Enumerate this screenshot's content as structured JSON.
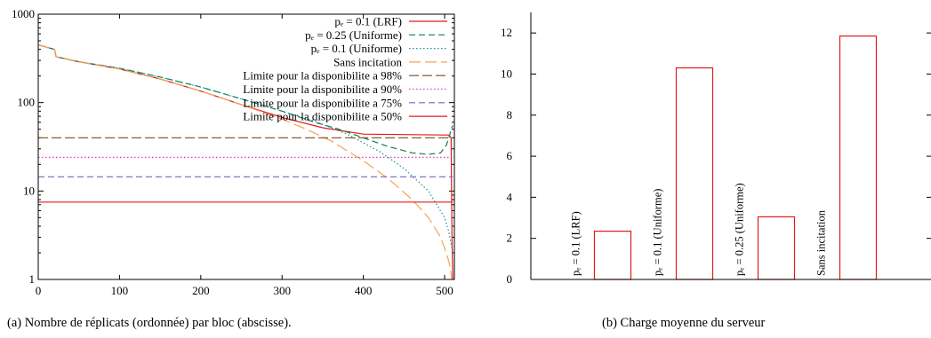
{
  "captions": {
    "left": "(a)  Nombre de réplicats (ordonnée) par bloc (abscisse).",
    "right": "(b)  Charge moyenne du serveur"
  },
  "chart_data": [
    {
      "type": "line",
      "title": "",
      "xlabel": "",
      "ylabel": "",
      "xlim": [
        0,
        512
      ],
      "ylim": [
        1,
        1000
      ],
      "yscale": "log",
      "grid": false,
      "legend_position": "top-right",
      "x_ticks": [
        "0",
        "100",
        "200",
        "300",
        "400",
        "500"
      ],
      "y_ticks": [
        "1",
        "10",
        "100",
        "1000"
      ],
      "series": [
        {
          "name": "p_e = 0.1 (LRF)",
          "legend_label": "pₑ = 0.1 (LRF)",
          "color": "#e31a1c",
          "dash": "solid",
          "x": [
            0,
            20,
            22,
            50,
            100,
            150,
            200,
            250,
            300,
            350,
            400,
            450,
            500,
            505,
            508,
            509,
            510
          ],
          "y": [
            450,
            400,
            330,
            290,
            240,
            185,
            135,
            95,
            68,
            52,
            44,
            43.5,
            43,
            43,
            40,
            3,
            1
          ]
        },
        {
          "name": "p_e = 0.25 (Uniforme)",
          "legend_label": "pₑ = 0.25 (Uniforme)",
          "color": "#0b8043",
          "dash": "dashed",
          "x": [
            0,
            20,
            22,
            50,
            100,
            150,
            200,
            250,
            300,
            340,
            370,
            400,
            430,
            460,
            480,
            495,
            502,
            506,
            508,
            510
          ],
          "y": [
            450,
            400,
            330,
            290,
            245,
            195,
            150,
            110,
            80,
            60,
            50,
            40,
            32,
            27,
            26,
            27,
            33,
            42,
            50,
            55
          ]
        },
        {
          "name": "p_e = 0.1 (Uniforme)",
          "legend_label": "pₑ = 0.1 (Uniforme)",
          "color": "#1d8fa3",
          "dash": "dotted",
          "x": [
            0,
            20,
            22,
            50,
            100,
            150,
            200,
            250,
            300,
            340,
            380,
            420,
            450,
            480,
            500,
            505,
            510
          ],
          "y": [
            450,
            400,
            330,
            290,
            245,
            195,
            150,
            110,
            80,
            62,
            44,
            28,
            18,
            10,
            5,
            3.5,
            2
          ]
        },
        {
          "name": "Sans incitation",
          "legend_label": "Sans incitation",
          "color": "#f4a259",
          "dash": "longdash",
          "x": [
            0,
            20,
            22,
            50,
            100,
            150,
            200,
            250,
            300,
            330,
            360,
            400,
            430,
            460,
            480,
            495,
            502,
            506,
            509
          ],
          "y": [
            450,
            400,
            330,
            290,
            240,
            185,
            135,
            95,
            65,
            50,
            37,
            22,
            14,
            8,
            5,
            3,
            2,
            1.5,
            1
          ]
        },
        {
          "name": "Limite pour la disponibilite a 98%",
          "legend_label": "Limite pour la disponibilite a 98%",
          "color": "#7a4a1f",
          "dash": "dashed-long",
          "x": [
            0,
            510
          ],
          "y": [
            40,
            40
          ]
        },
        {
          "name": "Limite pour la disponibilite a 90%",
          "legend_label": "Limite pour la disponibilite a 90%",
          "color": "#e637c2",
          "dash": "dotted",
          "x": [
            0,
            510
          ],
          "y": [
            24,
            24
          ]
        },
        {
          "name": "Limite pour la disponibilite a 75%",
          "legend_label": "Limite pour la disponibilite a 75%",
          "color": "#7d63b8",
          "dash": "dashed",
          "x": [
            0,
            510
          ],
          "y": [
            14.5,
            14.5
          ]
        },
        {
          "name": "Limite pour la disponibilite a 50%",
          "legend_label": "Limite pour la disponibilite a 50%",
          "color": "#e31a1c",
          "dash": "solid",
          "x": [
            0,
            510
          ],
          "y": [
            7.5,
            7.5
          ]
        }
      ]
    },
    {
      "type": "bar",
      "title": "",
      "xlabel": "",
      "ylabel": "",
      "ylim": [
        0,
        13
      ],
      "grid": false,
      "y_ticks": [
        "0",
        "2",
        "4",
        "6",
        "8",
        "10",
        "12"
      ],
      "bar_color": "#e31a1c",
      "categories": [
        "p_e = 0.1 (LRF)",
        "p_e = 0.1 (Uniforme)",
        "p_e = 0.25 (Uniforme)",
        "Sans incitation"
      ],
      "category_labels": [
        "pₑ = 0.1 (LRF)",
        "pₑ = 0.1 (Uniforme)",
        "pₑ = 0.25 (Uniforme)",
        "Sans incitation"
      ],
      "values": [
        2.35,
        10.3,
        3.05,
        11.85
      ]
    }
  ]
}
